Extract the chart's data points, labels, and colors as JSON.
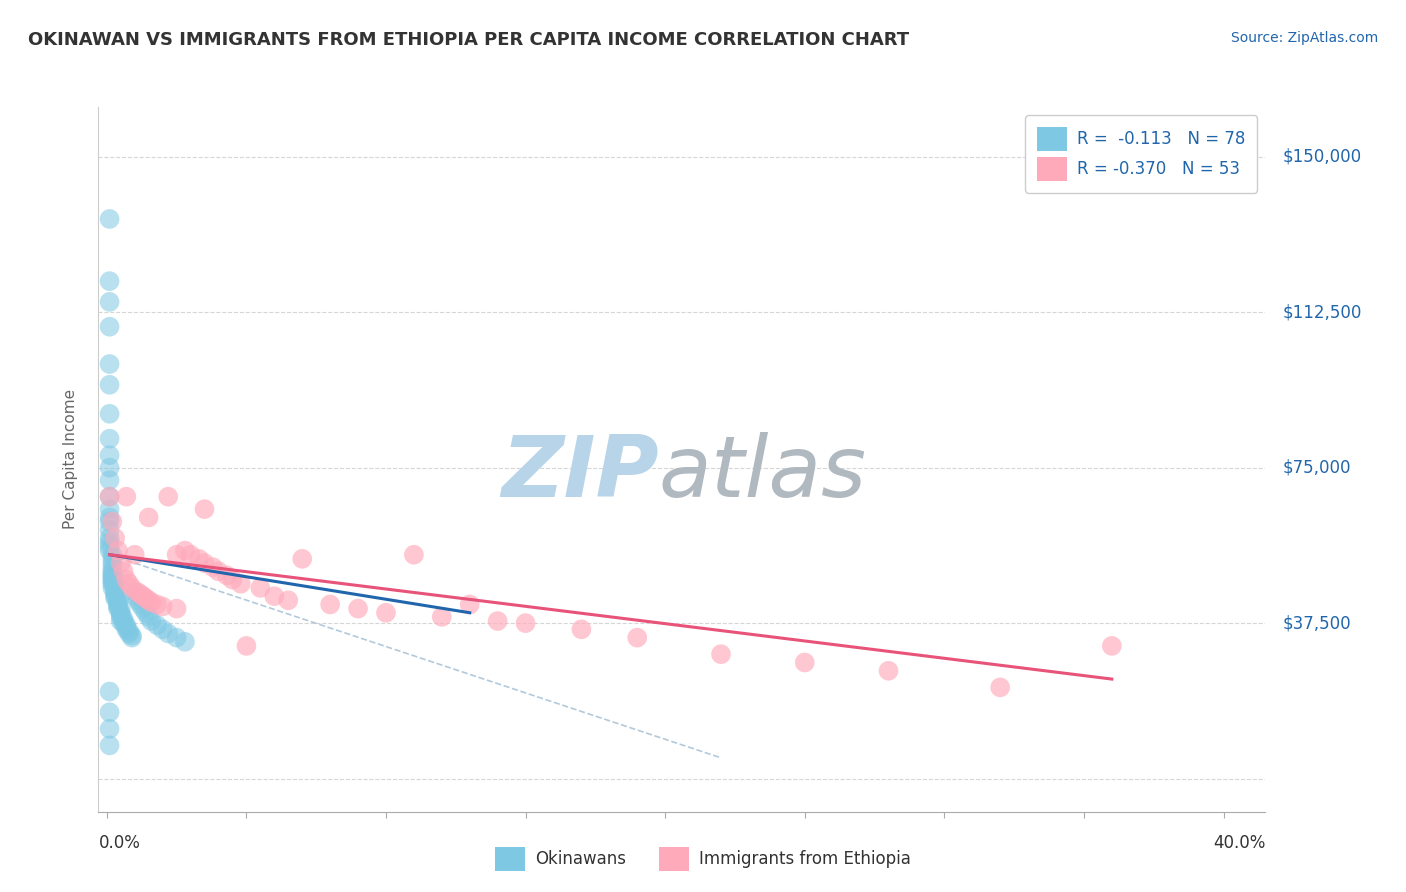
{
  "title": "OKINAWAN VS IMMIGRANTS FROM ETHIOPIA PER CAPITA INCOME CORRELATION CHART",
  "source": "Source: ZipAtlas.com",
  "ylabel": "Per Capita Income",
  "ytick_vals": [
    0,
    37500,
    75000,
    112500,
    150000
  ],
  "ytick_labels": [
    "",
    "$37,500",
    "$75,000",
    "$112,500",
    "$150,000"
  ],
  "xlim": [
    -0.003,
    0.415
  ],
  "ylim": [
    -8000,
    162000
  ],
  "legend_label1": "Okinawans",
  "legend_label2": "Immigrants from Ethiopia",
  "color_blue": "#7ec8e3",
  "color_pink": "#ffaabb",
  "color_blue_line": "#2166ac",
  "color_pink_line": "#e8537a",
  "color_dashed_line": "#aac4d8",
  "watermark_color_zip": "#b8d4e8",
  "watermark_color_atlas": "#b0b8c0",
  "background_color": "#ffffff",
  "grid_color": "#cccccc",
  "title_color": "#333333",
  "axis_label_color": "#2166ac",
  "legend_r1_color": "#2166ac",
  "legend_n1_color": "#2166ac",
  "okinawan_x": [
    0.001,
    0.001,
    0.001,
    0.001,
    0.001,
    0.001,
    0.001,
    0.001,
    0.001,
    0.001,
    0.001,
    0.001,
    0.001,
    0.001,
    0.001,
    0.001,
    0.001,
    0.001,
    0.001,
    0.001,
    0.002,
    0.002,
    0.002,
    0.002,
    0.002,
    0.002,
    0.002,
    0.002,
    0.002,
    0.002,
    0.003,
    0.003,
    0.003,
    0.003,
    0.003,
    0.003,
    0.003,
    0.003,
    0.004,
    0.004,
    0.004,
    0.004,
    0.004,
    0.005,
    0.005,
    0.005,
    0.005,
    0.006,
    0.006,
    0.006,
    0.007,
    0.007,
    0.007,
    0.008,
    0.008,
    0.009,
    0.009,
    0.01,
    0.01,
    0.011,
    0.012,
    0.013,
    0.014,
    0.015,
    0.016,
    0.018,
    0.02,
    0.022,
    0.025,
    0.028,
    0.001,
    0.001,
    0.001,
    0.001,
    0.002,
    0.002,
    0.003,
    0.005
  ],
  "okinawan_y": [
    135000,
    120000,
    115000,
    109000,
    100000,
    95000,
    88000,
    82000,
    78000,
    75000,
    72000,
    68000,
    65000,
    63000,
    62000,
    60000,
    58000,
    57000,
    56000,
    55000,
    54000,
    53000,
    52000,
    51000,
    50000,
    49500,
    49000,
    48500,
    48000,
    47500,
    47000,
    46500,
    46000,
    45500,
    45000,
    44500,
    44000,
    43500,
    43000,
    42500,
    42000,
    41500,
    41000,
    40500,
    40000,
    39500,
    39000,
    38500,
    38000,
    37500,
    37000,
    36500,
    36000,
    35500,
    35000,
    34500,
    34000,
    45000,
    44000,
    43000,
    42000,
    41000,
    40000,
    39000,
    38000,
    37000,
    36000,
    35000,
    34000,
    33000,
    21000,
    16000,
    12000,
    8000,
    46000,
    47000,
    48000,
    38000
  ],
  "ethiopia_x": [
    0.001,
    0.002,
    0.003,
    0.004,
    0.005,
    0.006,
    0.007,
    0.007,
    0.008,
    0.009,
    0.01,
    0.011,
    0.012,
    0.013,
    0.014,
    0.015,
    0.015,
    0.016,
    0.018,
    0.02,
    0.022,
    0.025,
    0.025,
    0.028,
    0.03,
    0.033,
    0.035,
    0.035,
    0.038,
    0.04,
    0.043,
    0.045,
    0.048,
    0.05,
    0.055,
    0.06,
    0.065,
    0.07,
    0.08,
    0.09,
    0.1,
    0.11,
    0.12,
    0.13,
    0.14,
    0.15,
    0.17,
    0.19,
    0.22,
    0.25,
    0.28,
    0.32,
    0.36
  ],
  "ethiopia_y": [
    68000,
    62000,
    58000,
    55000,
    52000,
    50000,
    68000,
    48000,
    47000,
    46000,
    54000,
    45000,
    44500,
    44000,
    43500,
    43000,
    63000,
    42500,
    42000,
    41500,
    68000,
    54000,
    41000,
    55000,
    54000,
    53000,
    52000,
    65000,
    51000,
    50000,
    49000,
    48000,
    47000,
    32000,
    46000,
    44000,
    43000,
    53000,
    42000,
    41000,
    40000,
    54000,
    39000,
    42000,
    38000,
    37500,
    36000,
    34000,
    30000,
    28000,
    26000,
    22000,
    32000
  ],
  "blue_line_x": [
    0.001,
    0.13
  ],
  "blue_line_y": [
    54000,
    40000
  ],
  "pink_line_x": [
    0.001,
    0.36
  ],
  "pink_line_y": [
    54000,
    24000
  ],
  "dashed_line_x": [
    0.001,
    0.22
  ],
  "dashed_line_y": [
    54000,
    5000
  ]
}
